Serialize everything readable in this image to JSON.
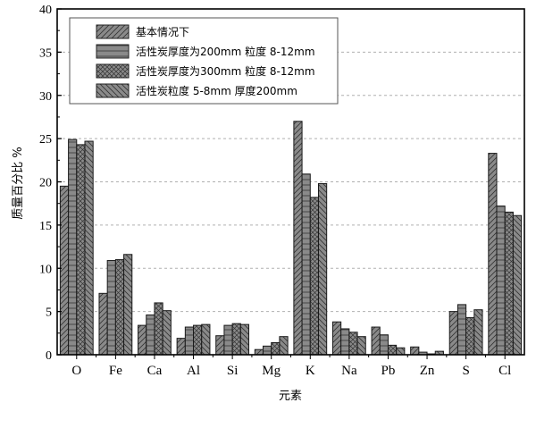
{
  "chart_data": {
    "type": "bar",
    "title": "",
    "xlabel": "元素",
    "ylabel": "质量百分比  %",
    "ylim": [
      0,
      40
    ],
    "yticks": [
      0,
      5,
      10,
      15,
      20,
      25,
      30,
      35,
      40
    ],
    "grid": true,
    "legend_position": "top",
    "categories": [
      "O",
      "Fe",
      "Ca",
      "Al",
      "Si",
      "Mg",
      "K",
      "Na",
      "Pb",
      "Zn",
      "S",
      "Cl"
    ],
    "series": [
      {
        "name": "基本情况下",
        "pattern": "diagonal-forward",
        "values": [
          19.5,
          7.1,
          3.4,
          1.9,
          2.2,
          0.6,
          27.0,
          3.8,
          3.2,
          0.9,
          5.0,
          23.3
        ]
      },
      {
        "name": "活性炭厚度为200mm 粒度 8-12mm",
        "pattern": "horizontal",
        "values": [
          24.9,
          10.9,
          4.6,
          3.2,
          3.4,
          1.0,
          20.9,
          3.0,
          2.3,
          0.3,
          5.8,
          17.2
        ]
      },
      {
        "name": "活性炭厚度为300mm 粒度 8-12mm",
        "pattern": "crosshatch",
        "values": [
          24.3,
          11.0,
          6.0,
          3.4,
          3.6,
          1.4,
          18.2,
          2.6,
          1.1,
          0.1,
          4.3,
          16.5
        ]
      },
      {
        "name": "活性炭粒度 5-8mm 厚度200mm",
        "pattern": "diagonal-back",
        "values": [
          24.7,
          11.6,
          5.1,
          3.5,
          3.5,
          2.1,
          19.8,
          2.1,
          0.8,
          0.4,
          5.2,
          16.1
        ]
      }
    ],
    "colors": {
      "bar_fill": "#8a8a8a",
      "bar_stroke": "#1a1a1a",
      "grid": "#b0b0b0"
    }
  }
}
